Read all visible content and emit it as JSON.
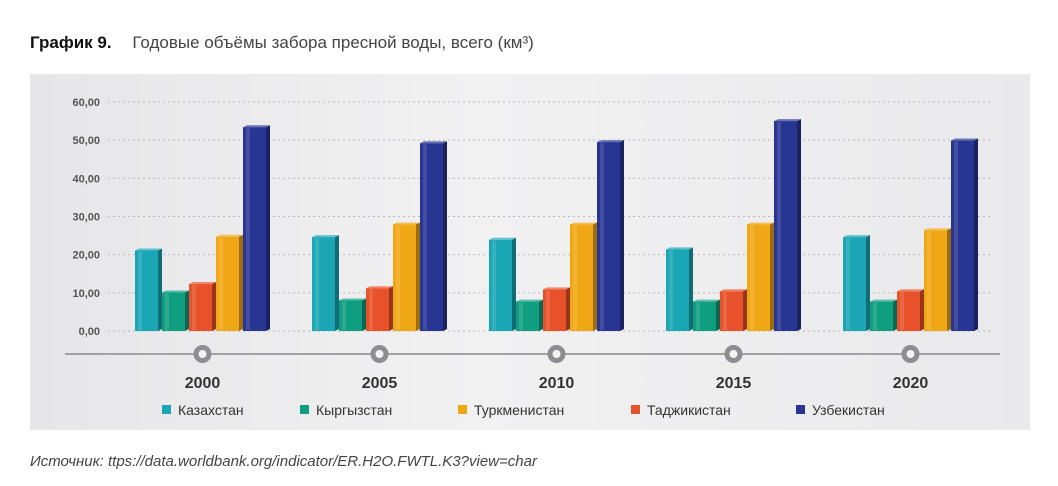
{
  "figure": {
    "number": "График 9.",
    "title": "Годовые объёмы забора пресной воды, всего (км³)"
  },
  "source": "Источник: ttps://data.worldbank.org/indicator/ER.H2O.FWTL.K3?view=char",
  "chart_data": {
    "type": "bar",
    "categories": [
      "2000",
      "2005",
      "2010",
      "2015",
      "2020"
    ],
    "ylim": [
      0,
      60
    ],
    "yticks": [
      "0,00",
      "10,00",
      "20,00",
      "30,00",
      "40,00",
      "50,00",
      "60,00"
    ],
    "grid": true,
    "legend_position": "bottom",
    "series": [
      {
        "name": "Казахстан",
        "color": "#1aa6b5",
        "values": [
          21.1,
          24.6,
          23.9,
          21.4,
          24.6
        ]
      },
      {
        "name": "Кыргызстан",
        "color": "#0f9e7f",
        "values": [
          10.1,
          8.0,
          7.7,
          7.7,
          7.7
        ]
      },
      {
        "name": "Таджикистан",
        "color": "#e8522a",
        "values": [
          12.3,
          11.2,
          10.9,
          10.4,
          10.4
        ]
      },
      {
        "name": "Туркменистан",
        "color": "#f0a716",
        "values": [
          24.7,
          27.9,
          27.9,
          27.9,
          26.4
        ]
      },
      {
        "name": "Узбекистан",
        "color": "#283593",
        "values": [
          53.4,
          49.2,
          49.5,
          55.0,
          49.9
        ]
      }
    ],
    "legend_order": [
      "Казахстан",
      "Кыргызстан",
      "Туркменистан",
      "Таджикистан",
      "Узбекистан"
    ]
  }
}
